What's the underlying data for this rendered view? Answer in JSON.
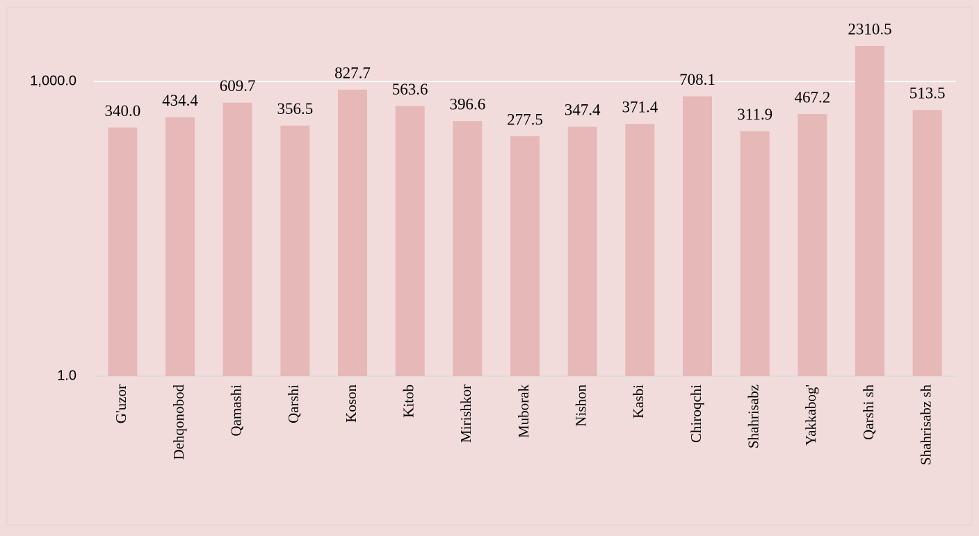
{
  "chart_data": {
    "type": "bar",
    "log_scale": true,
    "grid": true,
    "color": "#e6b8b7",
    "categories": [
      "G'uzor",
      "Dehqonobod",
      "Qamashi",
      "Qarshi",
      "Koson",
      "Kitob",
      "Mirishkor",
      "Muborak",
      "Nishon",
      "Kasbi",
      "Chiroqchi",
      "Shahrisabz",
      "Yakkabog'",
      "Qarshi sh",
      "Shahrisabz sh"
    ],
    "values": [
      340,
      434.4,
      609.7,
      356.5,
      827.7,
      563.6,
      396.6,
      277.5,
      347.4,
      371.4,
      708.1,
      311.9,
      467.2,
      2310.5,
      513.5
    ],
    "value_labels": [
      "340.0",
      "434.4",
      "609.7",
      "356.5",
      "827.7",
      "563.6",
      "396.6",
      "277.5",
      "347.4",
      "371.4",
      "708.1",
      "311.9",
      "467.2",
      "2310.5",
      "513.5"
    ],
    "ylim": [
      1,
      3000
    ],
    "yticks": [
      {
        "value": 1,
        "label": "1.0"
      },
      {
        "value": 1000,
        "label": "1,000.0"
      }
    ]
  }
}
